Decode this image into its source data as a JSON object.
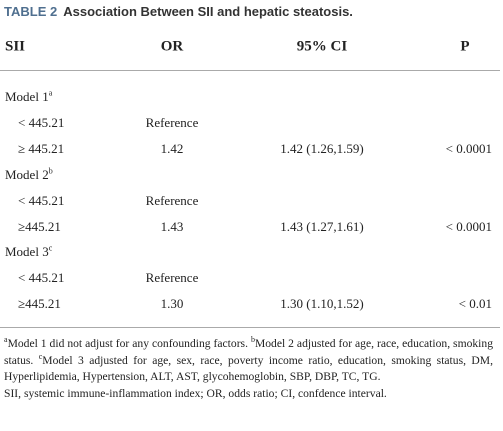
{
  "title": {
    "label": "TABLE 2",
    "text": "Association Between SII and hepatic steatosis."
  },
  "table": {
    "header": [
      "SII",
      "OR",
      "95% CI",
      "P"
    ],
    "rows": [
      {
        "model": "Model 1",
        "sup": "a"
      },
      {
        "cells": [
          "< 445.21",
          "Reference"
        ]
      },
      {
        "cells": [
          "≥ 445.21",
          "1.42",
          "1.42 (1.26,1.59)",
          "< 0.0001"
        ]
      },
      {
        "model": "Model 2",
        "sup": "b"
      },
      {
        "cells": [
          "< 445.21",
          "Reference"
        ]
      },
      {
        "cells": [
          "≥445.21",
          "1.43",
          "1.43 (1.27,1.61)",
          "< 0.0001"
        ]
      },
      {
        "model": "Model 3",
        "sup": "c"
      },
      {
        "cells": [
          "< 445.21",
          "Reference"
        ]
      },
      {
        "cells": [
          "≥445.21",
          "1.30",
          "1.30 (1.10,1.52)",
          "< 0.01"
        ]
      }
    ]
  },
  "footnotes": [
    [
      {
        "sup": "a"
      },
      {
        "text": "Model 1 did not adjust for any confounding factors. "
      },
      {
        "sup": "b"
      },
      {
        "text": "Model 2 adjusted for age, race, education, smoking status. "
      },
      {
        "sup": "c"
      },
      {
        "text": "Model 3 adjusted for age, sex, race, poverty income ratio, education, smoking status, DM, Hyperlipidemia, Hypertension, ALT, AST, glycohemoglobin, SBP, DBP, TC, TG."
      }
    ],
    [
      {
        "text": "SII, systemic immune-inflammation index; OR, odds ratio; CI, confdence interval."
      }
    ]
  ]
}
